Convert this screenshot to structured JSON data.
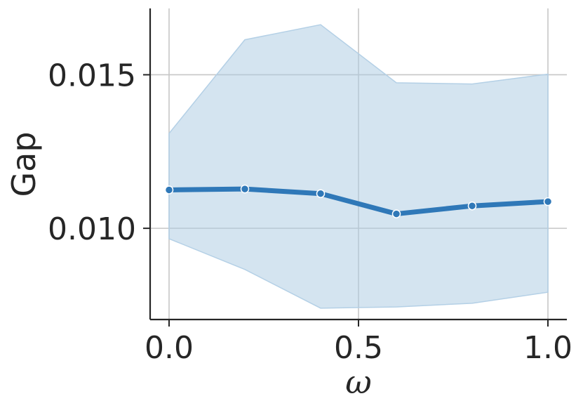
{
  "chart_data": {
    "type": "line",
    "xlabel": "ω",
    "ylabel": "Gap",
    "xlim": [
      -0.05,
      1.05
    ],
    "ylim": [
      0.00703,
      0.01716
    ],
    "xticks": [
      "0.0",
      "0.5",
      "1.0"
    ],
    "yticks": [
      "0.010",
      "0.015"
    ],
    "grid": true,
    "series": [
      {
        "x": [
          0.0,
          0.2,
          0.4,
          0.6,
          0.8,
          1.0
        ],
        "y": [
          0.01125,
          0.01128,
          0.01113,
          0.01047,
          0.01073,
          0.01087
        ],
        "lower": [
          0.00966,
          0.00866,
          0.0074,
          0.00744,
          0.00756,
          0.00792
        ],
        "upper": [
          0.01309,
          0.01614,
          0.01663,
          0.01474,
          0.0147,
          0.01502
        ]
      }
    ],
    "colors": {
      "line": "#2f78b8",
      "band": "#a9c9e2",
      "band_edge": "#b4d0e6",
      "grid": "#c6c6c6",
      "axis": "#262626",
      "marker_edge": "#ffffff"
    }
  }
}
